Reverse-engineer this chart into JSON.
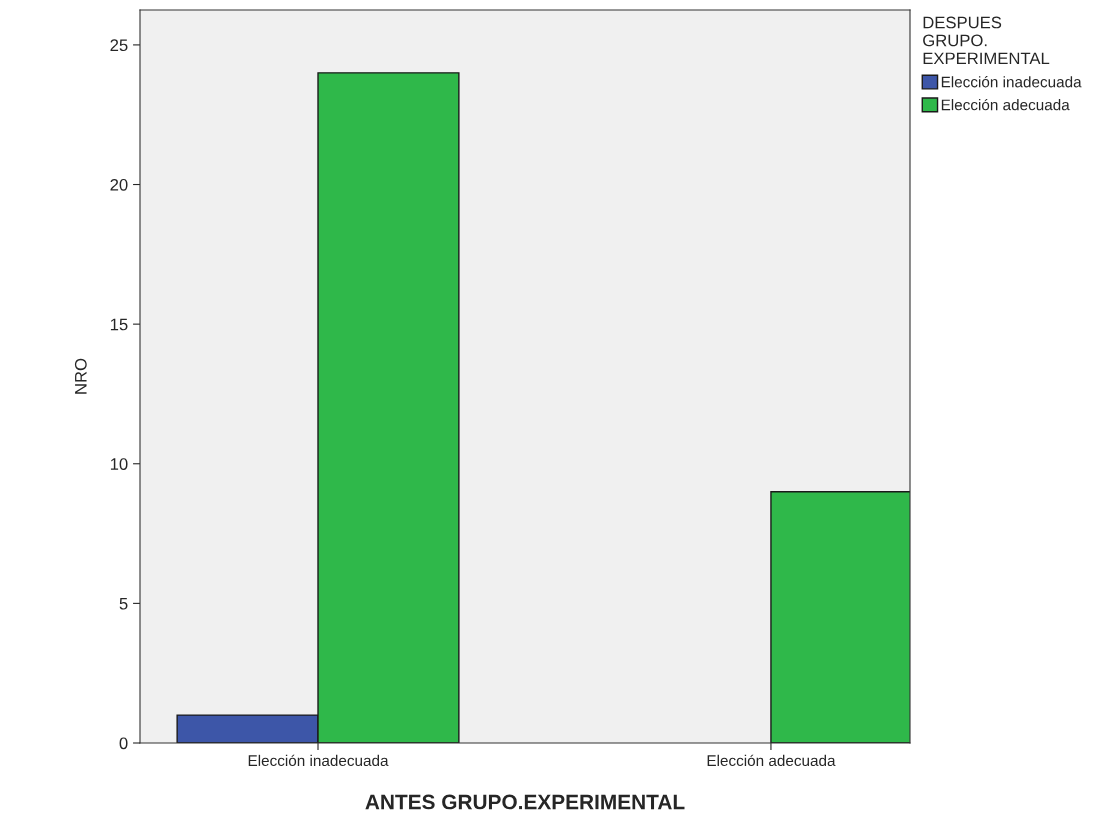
{
  "chart_data": {
    "type": "bar",
    "xlabel": "ANTES GRUPO.EXPERIMENTAL",
    "ylabel": "NRO",
    "legend_title": "DESPUES\nGRUPO.\nEXPERIMENTAL",
    "categories": [
      "Elección inadecuada",
      "Elección adecuada"
    ],
    "series": [
      {
        "name": "Elección inadecuada",
        "color": "#3d56a8",
        "values": [
          1,
          null
        ]
      },
      {
        "name": "Elección adecuada",
        "color": "#2fb84a",
        "values": [
          24,
          9
        ]
      }
    ],
    "ylim": [
      0,
      26.25
    ],
    "yticks": [
      0,
      5,
      10,
      15,
      20,
      25
    ],
    "grid": false,
    "legend": "top right"
  }
}
